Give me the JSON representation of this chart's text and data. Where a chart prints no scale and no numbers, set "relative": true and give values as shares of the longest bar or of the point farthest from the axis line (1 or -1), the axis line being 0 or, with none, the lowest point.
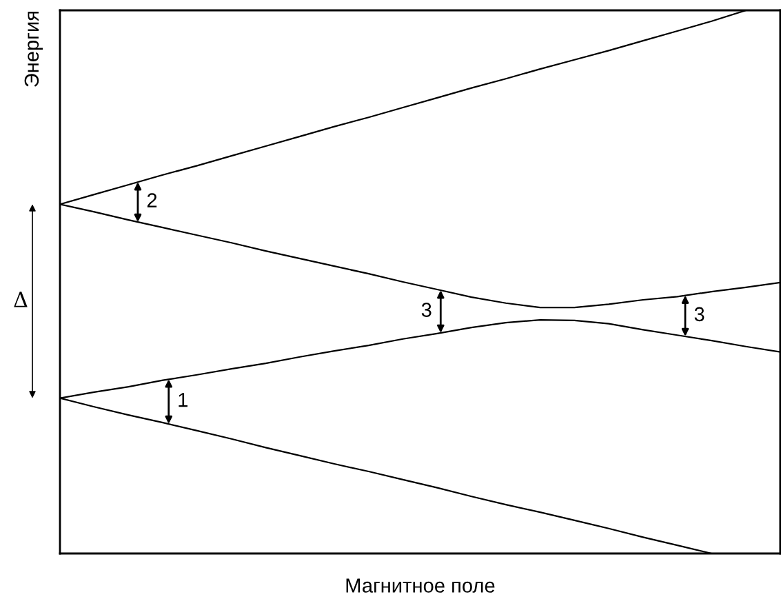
{
  "chart_data": {
    "type": "line",
    "relative": true,
    "xlabel": "Магнитное поле",
    "ylabel": "Энергия",
    "categories": [
      null,
      null,
      null,
      null,
      null,
      null,
      null,
      null,
      null,
      null,
      null,
      null,
      null,
      null,
      null,
      null,
      null,
      null,
      null,
      null,
      null,
      null
    ],
    "series": [
      {
        "color": "#000000",
        "values": [
          0.643,
          0.661,
          0.679,
          0.697,
          0.714,
          0.732,
          0.75,
          0.768,
          0.786,
          0.803,
          0.821,
          0.839,
          0.857,
          0.874,
          0.892,
          0.909,
          0.926,
          0.944,
          0.962,
          0.98,
          1.0,
          null
        ]
      },
      {
        "color": "#000000",
        "values": [
          0.643,
          0.629,
          0.614,
          0.6,
          0.586,
          0.572,
          0.557,
          0.543,
          0.529,
          0.515,
          0.5,
          0.486,
          0.472,
          0.461,
          0.453,
          0.453,
          0.459,
          0.467,
          0.473,
          0.482,
          0.49,
          0.499
        ]
      },
      {
        "color": "#000000",
        "values": [
          0.286,
          0.297,
          0.307,
          0.319,
          0.329,
          0.34,
          0.35,
          0.362,
          0.373,
          0.383,
          0.395,
          0.405,
          0.416,
          0.425,
          0.43,
          0.429,
          0.423,
          0.412,
          0.402,
          0.392,
          0.381,
          0.371
        ]
      },
      {
        "color": "#000000",
        "values": [
          0.286,
          0.27,
          0.255,
          0.241,
          0.226,
          0.211,
          0.195,
          0.18,
          0.165,
          0.151,
          0.136,
          0.121,
          0.105,
          0.09,
          0.076,
          0.061,
          0.046,
          0.03,
          0.015,
          0.0,
          null,
          null
        ]
      }
    ],
    "annotations": [
      "2",
      "1",
      "3",
      "3",
      "Δ"
    ],
    "grid": false,
    "legend": false,
    "marker": "none",
    "line_style": "solid"
  }
}
